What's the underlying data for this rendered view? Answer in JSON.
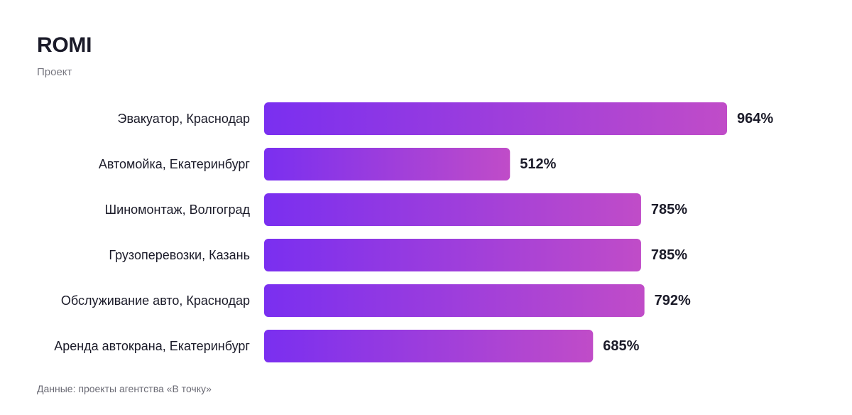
{
  "title": "ROMI",
  "subtitle": "Проект",
  "footer": "Данные: проекты агентства «В точку»",
  "colors": {
    "bar_start": "#7a2ff0",
    "bar_end": "#c04cc8",
    "label_text": "#1b1b29",
    "value_text": "#1b1b29"
  },
  "chart_data": {
    "type": "bar",
    "orientation": "horizontal",
    "categories": [
      "Эвакуатор, Краснодар",
      "Автомойка, Екатеринбург",
      "Шиномонтаж, Волгоград",
      "Грузоперевозки, Казань",
      "Обслуживание авто, Краснодар",
      "Аренда автокрана, Екатеринбург"
    ],
    "values": [
      964,
      512,
      785,
      785,
      792,
      685
    ],
    "value_labels": [
      "964%",
      "512%",
      "785%",
      "785%",
      "792%",
      "685%"
    ],
    "unit": "%",
    "title": "ROMI",
    "subtitle": "Проект",
    "xlim": [
      0,
      964
    ],
    "grid": false,
    "legend": "none"
  }
}
